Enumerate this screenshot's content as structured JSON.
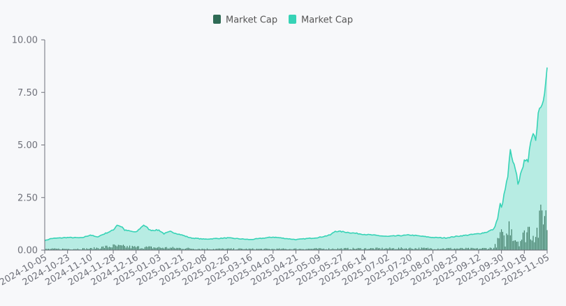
{
  "chart_data": {
    "type": "bar+area",
    "legend": {
      "position": "top-center",
      "items": [
        {
          "label": "Market Cap",
          "color": "#2f6b55"
        },
        {
          "label": "Market Cap",
          "color": "#36d3b6"
        }
      ]
    },
    "y_axis": {
      "min": 0,
      "max": 10,
      "ticks": [
        "0.00",
        "2.50",
        "5.00",
        "7.50",
        "10.00"
      ],
      "tick_values": [
        0,
        2.5,
        5,
        7.5,
        10
      ],
      "grid": false
    },
    "x_axis": {
      "labels": [
        "2024-10-05",
        "2024-10-23",
        "2024-11-10",
        "2024-11-28",
        "2024-12-16",
        "2025-01-03",
        "2025-01-21",
        "2025-02-08",
        "2025-02-26",
        "2025-03-16",
        "2025-04-03",
        "2025-04-21",
        "2025-05-09",
        "2025-05-27",
        "2025-06-14",
        "2025-07-02",
        "2025-07-20",
        "2025-08-07",
        "2025-08-25",
        "2025-09-12",
        "2025-09-30",
        "2025-10-18",
        "2025-11-05"
      ],
      "label_rotation": -30
    },
    "series": [
      {
        "name": "Market Cap",
        "kind": "bar",
        "color": "#2f6b55",
        "key_points": [
          {
            "date": "2024-10-05",
            "value": 0.06
          },
          {
            "date": "2024-11-10",
            "value": 0.08
          },
          {
            "date": "2024-11-28",
            "value": 0.22
          },
          {
            "date": "2024-12-16",
            "value": 0.16
          },
          {
            "date": "2025-01-03",
            "value": 0.14
          },
          {
            "date": "2025-02-08",
            "value": 0.07
          },
          {
            "date": "2025-04-03",
            "value": 0.06
          },
          {
            "date": "2025-05-27",
            "value": 0.08
          },
          {
            "date": "2025-07-20",
            "value": 0.1
          },
          {
            "date": "2025-09-12",
            "value": 0.08
          },
          {
            "date": "2025-09-24",
            "value": 0.12
          },
          {
            "date": "2025-09-28",
            "value": 0.55
          },
          {
            "date": "2025-09-29",
            "value": 0.95
          },
          {
            "date": "2025-10-03",
            "value": 0.42
          },
          {
            "date": "2025-10-07",
            "value": 1.6
          },
          {
            "date": "2025-10-10",
            "value": 0.7
          },
          {
            "date": "2025-10-14",
            "value": 0.5
          },
          {
            "date": "2025-10-18",
            "value": 0.8
          },
          {
            "date": "2025-10-21",
            "value": 1.2
          },
          {
            "date": "2025-10-25",
            "value": 0.9
          },
          {
            "date": "2025-10-29",
            "value": 1.1
          },
          {
            "date": "2025-11-02",
            "value": 2.4
          },
          {
            "date": "2025-11-05",
            "value": 1.5
          }
        ]
      },
      {
        "name": "Market Cap",
        "kind": "area",
        "color": "#36d3b6",
        "key_points": [
          {
            "date": "2024-10-05",
            "value": 0.45
          },
          {
            "date": "2024-10-10",
            "value": 0.55
          },
          {
            "date": "2024-10-23",
            "value": 0.6
          },
          {
            "date": "2024-11-03",
            "value": 0.58
          },
          {
            "date": "2024-11-10",
            "value": 0.72
          },
          {
            "date": "2024-11-15",
            "value": 0.62
          },
          {
            "date": "2024-11-22",
            "value": 0.8
          },
          {
            "date": "2024-11-28",
            "value": 0.95
          },
          {
            "date": "2024-12-01",
            "value": 1.2
          },
          {
            "date": "2024-12-05",
            "value": 1.1
          },
          {
            "date": "2024-12-07",
            "value": 0.95
          },
          {
            "date": "2024-12-16",
            "value": 0.85
          },
          {
            "date": "2024-12-22",
            "value": 1.2
          },
          {
            "date": "2024-12-27",
            "value": 0.95
          },
          {
            "date": "2025-01-03",
            "value": 0.95
          },
          {
            "date": "2025-01-07",
            "value": 0.78
          },
          {
            "date": "2025-01-12",
            "value": 0.88
          },
          {
            "date": "2025-01-21",
            "value": 0.72
          },
          {
            "date": "2025-01-28",
            "value": 0.58
          },
          {
            "date": "2025-02-08",
            "value": 0.52
          },
          {
            "date": "2025-02-26",
            "value": 0.58
          },
          {
            "date": "2025-03-16",
            "value": 0.5
          },
          {
            "date": "2025-04-03",
            "value": 0.62
          },
          {
            "date": "2025-04-21",
            "value": 0.5
          },
          {
            "date": "2025-05-09",
            "value": 0.6
          },
          {
            "date": "2025-05-18",
            "value": 0.72
          },
          {
            "date": "2025-05-22",
            "value": 0.9
          },
          {
            "date": "2025-05-27",
            "value": 0.88
          },
          {
            "date": "2025-06-14",
            "value": 0.75
          },
          {
            "date": "2025-07-02",
            "value": 0.65
          },
          {
            "date": "2025-07-20",
            "value": 0.72
          },
          {
            "date": "2025-08-07",
            "value": 0.6
          },
          {
            "date": "2025-08-17",
            "value": 0.58
          },
          {
            "date": "2025-08-25",
            "value": 0.65
          },
          {
            "date": "2025-09-12",
            "value": 0.78
          },
          {
            "date": "2025-09-18",
            "value": 0.85
          },
          {
            "date": "2025-09-24",
            "value": 1.0
          },
          {
            "date": "2025-09-27",
            "value": 1.5
          },
          {
            "date": "2025-09-29",
            "value": 2.2
          },
          {
            "date": "2025-09-30",
            "value": 2.0
          },
          {
            "date": "2025-10-02",
            "value": 2.6
          },
          {
            "date": "2025-10-05",
            "value": 3.5
          },
          {
            "date": "2025-10-07",
            "value": 4.7
          },
          {
            "date": "2025-10-09",
            "value": 4.1
          },
          {
            "date": "2025-10-11",
            "value": 3.9
          },
          {
            "date": "2025-10-13",
            "value": 3.2
          },
          {
            "date": "2025-10-16",
            "value": 3.7
          },
          {
            "date": "2025-10-18",
            "value": 4.4
          },
          {
            "date": "2025-10-21",
            "value": 4.1
          },
          {
            "date": "2025-10-23",
            "value": 5.2
          },
          {
            "date": "2025-10-25",
            "value": 5.7
          },
          {
            "date": "2025-10-27",
            "value": 5.2
          },
          {
            "date": "2025-10-29",
            "value": 6.6
          },
          {
            "date": "2025-10-31",
            "value": 6.9
          },
          {
            "date": "2025-11-02",
            "value": 7.3
          },
          {
            "date": "2025-11-04",
            "value": 8.0
          },
          {
            "date": "2025-11-05",
            "value": 8.7
          }
        ]
      }
    ]
  }
}
